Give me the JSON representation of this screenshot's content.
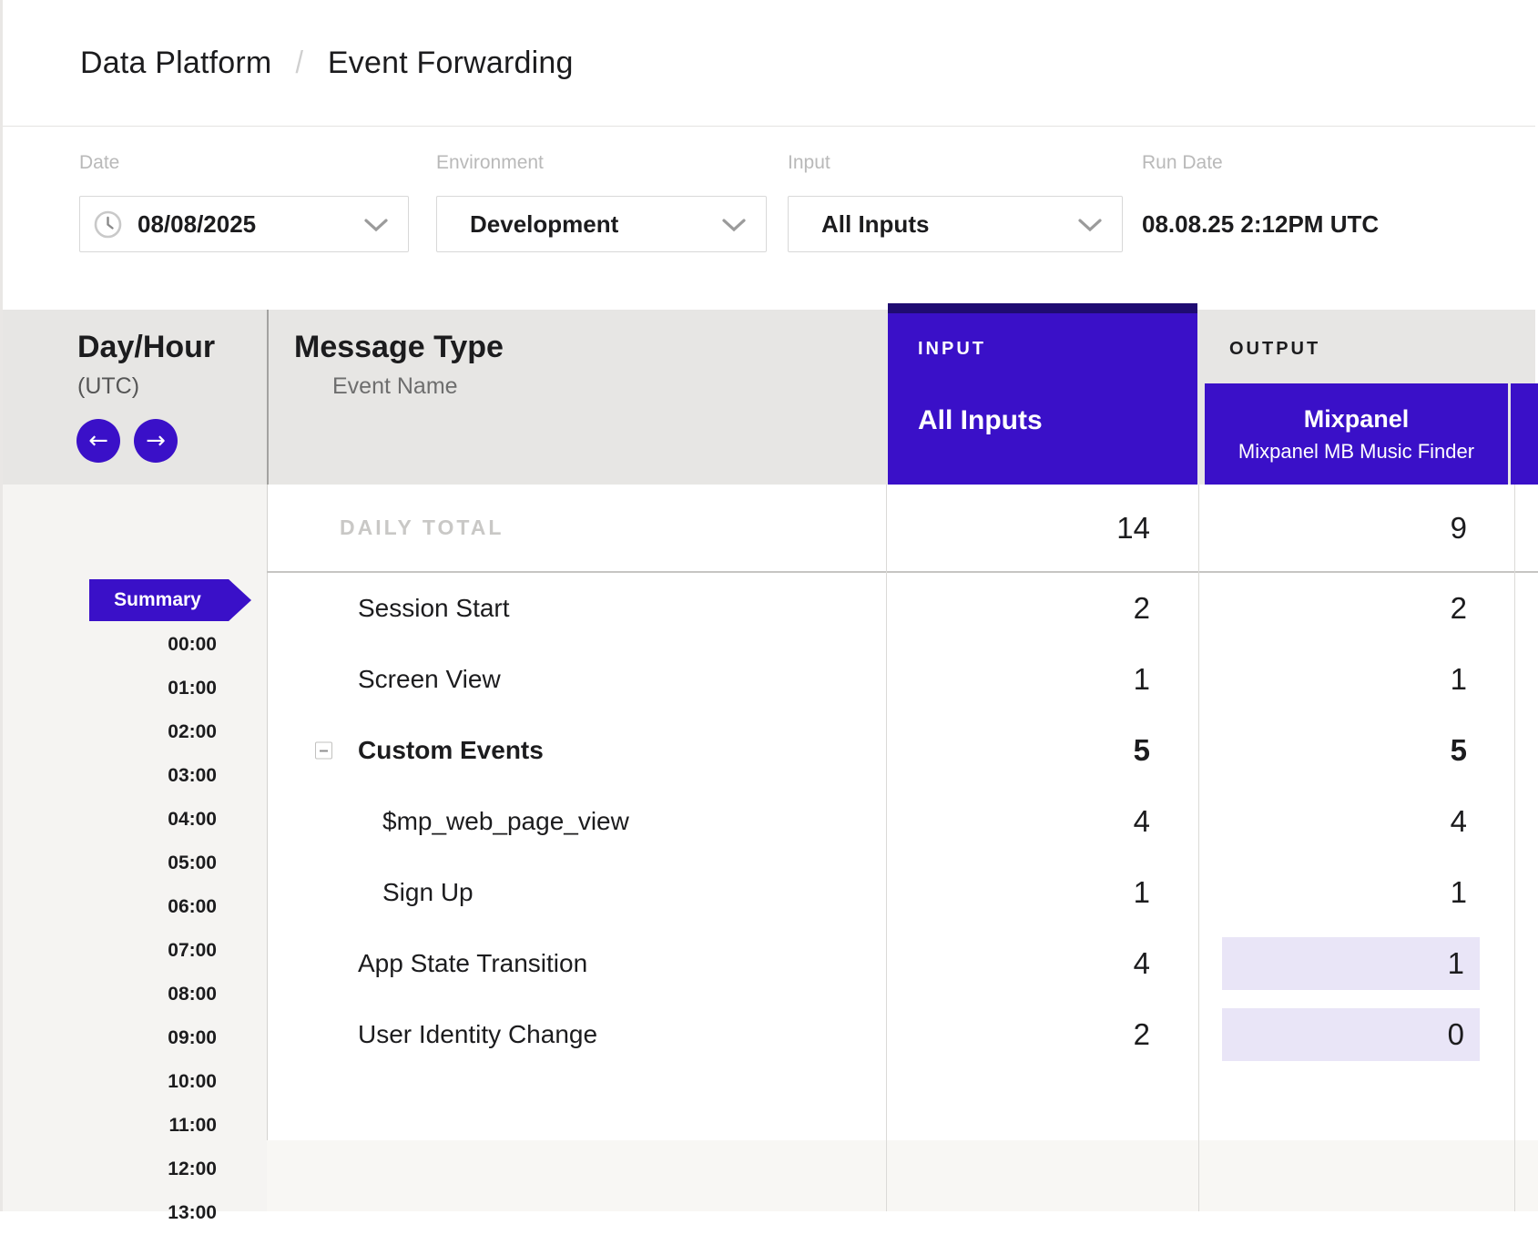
{
  "breadcrumb": {
    "section": "Data Platform",
    "separator": "/",
    "page": "Event Forwarding"
  },
  "filters": {
    "date": {
      "label": "Date",
      "value": "08/08/2025"
    },
    "environment": {
      "label": "Environment",
      "value": "Development"
    },
    "input": {
      "label": "Input",
      "value": "All Inputs"
    },
    "run_date": {
      "label": "Run Date",
      "value": "08.08.25 2:12PM UTC"
    }
  },
  "table": {
    "day_hour": {
      "title": "Day/Hour",
      "subtitle": "(UTC)"
    },
    "message_type": {
      "title": "Message Type",
      "subtitle": "Event Name"
    },
    "input_column": {
      "group_label": "INPUT",
      "name": "All Inputs"
    },
    "output_column": {
      "group_label": "OUTPUT",
      "name": "Mixpanel",
      "subtitle": "Mixpanel MB Music Finder"
    },
    "daily_total": {
      "label": "DAILY TOTAL",
      "input": "14",
      "output": "9"
    },
    "rows": [
      {
        "label": "Session Start",
        "input": "2",
        "output": "2",
        "indent": false,
        "bold": false,
        "collapsible": false,
        "output_highlight": false
      },
      {
        "label": "Screen View",
        "input": "1",
        "output": "1",
        "indent": false,
        "bold": false,
        "collapsible": false,
        "output_highlight": false
      },
      {
        "label": "Custom Events",
        "input": "5",
        "output": "5",
        "indent": false,
        "bold": true,
        "collapsible": true,
        "output_highlight": false
      },
      {
        "label": "$mp_web_page_view",
        "input": "4",
        "output": "4",
        "indent": true,
        "bold": false,
        "collapsible": false,
        "output_highlight": false
      },
      {
        "label": "Sign Up",
        "input": "1",
        "output": "1",
        "indent": true,
        "bold": false,
        "collapsible": false,
        "output_highlight": false
      },
      {
        "label": "App State Transition",
        "input": "4",
        "output": "1",
        "indent": false,
        "bold": false,
        "collapsible": false,
        "output_highlight": true
      },
      {
        "label": "User Identity Change",
        "input": "2",
        "output": "0",
        "indent": false,
        "bold": false,
        "collapsible": false,
        "output_highlight": true
      }
    ],
    "hours": {
      "summary_label": "Summary",
      "slots": [
        "00:00",
        "01:00",
        "02:00",
        "03:00",
        "04:00",
        "05:00",
        "06:00",
        "07:00",
        "08:00",
        "09:00",
        "10:00",
        "11:00",
        "12:00",
        "13:00"
      ]
    }
  },
  "colors": {
    "purple": "#3a10c8",
    "purple-dark": "#1f0b72",
    "highlight": "#e9e5f7",
    "header-gray": "#e7e6e4"
  }
}
